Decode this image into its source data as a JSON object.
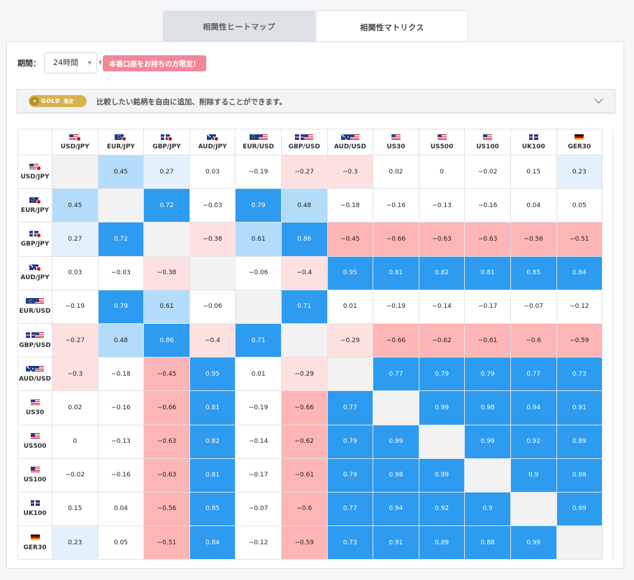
{
  "tabs": [
    {
      "label": "相関性ヒートマップ",
      "active": false
    },
    {
      "label": "相関性マトリクス",
      "active": true
    }
  ],
  "controls": {
    "period_label": "期間：",
    "period_value": "24時間",
    "promo_label": "本番口座をお持ちの方限定！"
  },
  "gold": {
    "badge_text": "GOLD",
    "badge_sub": "限定",
    "description": "比較したい銘柄を自由に追加、削除することができます。"
  },
  "colors": {
    "blue": "#2d9bf0",
    "light_blue": "#b3dcfa",
    "pale_blue": "#e4f1fc",
    "pink": "#fdb5b5",
    "pale_pink": "#fde0e0",
    "diagonal": "#f2f2f2",
    "promo": "#f2879a",
    "gold": "#d7b24c"
  },
  "matrix": {
    "symbols": [
      {
        "label": "USD/JPY",
        "flags": [
          "usa",
          "jp"
        ],
        "index": false
      },
      {
        "label": "EUR/JPY",
        "flags": [
          "euro",
          "jp"
        ],
        "index": false
      },
      {
        "label": "GBP/JPY",
        "flags": [
          "uk",
          "jp"
        ],
        "index": false
      },
      {
        "label": "AUD/JPY",
        "flags": [
          "aus",
          "jp"
        ],
        "index": false
      },
      {
        "label": "EUR/USD",
        "flags": [
          "euro",
          "usa"
        ],
        "index": false
      },
      {
        "label": "GBP/USD",
        "flags": [
          "uk",
          "usa"
        ],
        "index": false
      },
      {
        "label": "AUD/USD",
        "flags": [
          "aus",
          "usa"
        ],
        "index": false
      },
      {
        "label": "US30",
        "flags": [
          "usa"
        ],
        "index": true
      },
      {
        "label": "US500",
        "flags": [
          "usa"
        ],
        "index": true
      },
      {
        "label": "US100",
        "flags": [
          "usa"
        ],
        "index": true
      },
      {
        "label": "UK100",
        "flags": [
          "uk"
        ],
        "index": true
      },
      {
        "label": "GER30",
        "flags": [
          "ger"
        ],
        "index": true
      }
    ],
    "rows": [
      {
        "values": [
          "",
          "0.45",
          "0.27",
          "0.03",
          "−0.19",
          "−0.27",
          "−0.3",
          "0.02",
          "0",
          "−0.02",
          "0.15",
          "0.23"
        ],
        "tones": [
          "diag",
          "lb2",
          "lb1",
          "none",
          "none",
          "lp1",
          "lp1",
          "none",
          "none",
          "none",
          "none",
          "lb1"
        ]
      },
      {
        "values": [
          "0.45",
          "",
          "0.72",
          "−0.03",
          "0.79",
          "0.48",
          "−0.18",
          "−0.16",
          "−0.13",
          "−0.16",
          "0.04",
          "0.05"
        ],
        "tones": [
          "lb2",
          "diag",
          "blue",
          "none",
          "blue",
          "lb2",
          "none",
          "none",
          "none",
          "none",
          "none",
          "none"
        ]
      },
      {
        "values": [
          "0.27",
          "0.72",
          "",
          "−0.38",
          "0.61",
          "0.86",
          "−0.45",
          "−0.66",
          "−0.63",
          "−0.63",
          "−0.56",
          "−0.51"
        ],
        "tones": [
          "lb1",
          "blue",
          "diag",
          "lp1",
          "lb2",
          "blue",
          "lp2",
          "lp2",
          "lp2",
          "lp2",
          "lp2",
          "lp2"
        ]
      },
      {
        "values": [
          "0.03",
          "−0.03",
          "−0.38",
          "",
          "−0.06",
          "−0.4",
          "0.95",
          "0.81",
          "0.82",
          "0.81",
          "0.85",
          "0.84"
        ],
        "tones": [
          "none",
          "none",
          "lp1",
          "diag",
          "none",
          "lp1",
          "blue",
          "blue",
          "blue",
          "blue",
          "blue",
          "blue"
        ]
      },
      {
        "values": [
          "−0.19",
          "0.79",
          "0.61",
          "−0.06",
          "",
          "0.71",
          "0.01",
          "−0.19",
          "−0.14",
          "−0.17",
          "−0.07",
          "−0.12"
        ],
        "tones": [
          "none",
          "blue",
          "lb2",
          "none",
          "diag",
          "blue",
          "none",
          "none",
          "none",
          "none",
          "none",
          "none"
        ]
      },
      {
        "values": [
          "−0.27",
          "0.48",
          "0.86",
          "−0.4",
          "0.71",
          "",
          "−0.29",
          "−0.66",
          "−0.62",
          "−0.61",
          "−0.6",
          "−0.59"
        ],
        "tones": [
          "lp1",
          "lb2",
          "blue",
          "lp1",
          "blue",
          "diag",
          "lp1",
          "lp2",
          "lp2",
          "lp2",
          "lp2",
          "lp2"
        ]
      },
      {
        "values": [
          "−0.3",
          "−0.18",
          "−0.45",
          "0.95",
          "0.01",
          "−0.29",
          "",
          "0.77",
          "0.79",
          "0.79",
          "0.77",
          "0.73"
        ],
        "tones": [
          "lp1",
          "none",
          "lp2",
          "blue",
          "none",
          "lp1",
          "diag",
          "blue",
          "blue",
          "blue",
          "blue",
          "blue"
        ]
      },
      {
        "values": [
          "0.02",
          "−0.16",
          "−0.66",
          "0.81",
          "−0.19",
          "−0.66",
          "0.77",
          "",
          "0.99",
          "0.98",
          "0.94",
          "0.91"
        ],
        "tones": [
          "none",
          "none",
          "lp2",
          "blue",
          "none",
          "lp2",
          "blue",
          "diag",
          "blue",
          "blue",
          "blue",
          "blue"
        ]
      },
      {
        "values": [
          "0",
          "−0.13",
          "−0.63",
          "0.82",
          "−0.14",
          "−0.62",
          "0.79",
          "0.99",
          "",
          "0.99",
          "0.92",
          "0.89"
        ],
        "tones": [
          "none",
          "none",
          "lp2",
          "blue",
          "none",
          "lp2",
          "blue",
          "blue",
          "diag",
          "blue",
          "blue",
          "blue"
        ]
      },
      {
        "values": [
          "−0.02",
          "−0.16",
          "−0.63",
          "0.81",
          "−0.17",
          "−0.61",
          "0.79",
          "0.98",
          "0.99",
          "",
          "0.9",
          "0.88"
        ],
        "tones": [
          "none",
          "none",
          "lp2",
          "blue",
          "none",
          "lp2",
          "blue",
          "blue",
          "blue",
          "diag",
          "blue",
          "blue"
        ]
      },
      {
        "values": [
          "0.15",
          "0.04",
          "−0.56",
          "0.85",
          "−0.07",
          "−0.6",
          "0.77",
          "0.94",
          "0.92",
          "0.9",
          "",
          "0.99"
        ],
        "tones": [
          "none",
          "none",
          "lp2",
          "blue",
          "none",
          "lp2",
          "blue",
          "blue",
          "blue",
          "blue",
          "diag",
          "blue"
        ]
      },
      {
        "values": [
          "0.23",
          "0.05",
          "−0.51",
          "0.84",
          "−0.12",
          "−0.59",
          "0.73",
          "0.91",
          "0.89",
          "0.88",
          "0.99",
          ""
        ],
        "tones": [
          "lb1",
          "none",
          "lp2",
          "blue",
          "none",
          "lp2",
          "blue",
          "blue",
          "blue",
          "blue",
          "blue",
          "diag"
        ]
      }
    ]
  }
}
